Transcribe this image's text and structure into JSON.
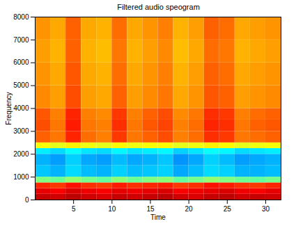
{
  "chart_data": {
    "type": "heatmap",
    "title": "Filtered audio speogram",
    "x_label": "Time",
    "y_label": "Frequency",
    "xlim": [
      0,
      32
    ],
    "ylim": [
      0,
      8000
    ],
    "xticks": [
      5,
      10,
      15,
      20,
      25,
      30
    ],
    "yticks": [
      0,
      1000,
      2000,
      3000,
      4000,
      5000,
      6000,
      7000,
      8000
    ],
    "x_edges": [
      0,
      2,
      4,
      6,
      8,
      10,
      12,
      14,
      16,
      18,
      20,
      22,
      24,
      26,
      28,
      30,
      32
    ],
    "y_edges": [
      0,
      250,
      500,
      750,
      1000,
      1500,
      2000,
      2250,
      2500,
      3000,
      3500,
      4000,
      5000,
      6000,
      7000,
      8000
    ],
    "zlim": [
      0,
      1
    ],
    "cells": [
      [
        0.93,
        0.92,
        0.94,
        0.92,
        0.91,
        0.93,
        0.92,
        0.93,
        0.94,
        0.92,
        0.91,
        0.93,
        0.94,
        0.92,
        0.93,
        0.92
      ],
      [
        0.9,
        0.88,
        0.91,
        0.89,
        0.88,
        0.9,
        0.89,
        0.9,
        0.91,
        0.88,
        0.89,
        0.9,
        0.91,
        0.89,
        0.88,
        0.9
      ],
      [
        0.84,
        0.82,
        0.86,
        0.83,
        0.82,
        0.85,
        0.83,
        0.84,
        0.85,
        0.82,
        0.83,
        0.86,
        0.85,
        0.83,
        0.82,
        0.84
      ],
      [
        0.5,
        0.48,
        0.52,
        0.49,
        0.47,
        0.51,
        0.48,
        0.5,
        0.51,
        0.47,
        0.49,
        0.52,
        0.5,
        0.48,
        0.47,
        0.49
      ],
      [
        0.32,
        0.3,
        0.34,
        0.31,
        0.3,
        0.33,
        0.31,
        0.32,
        0.33,
        0.29,
        0.31,
        0.34,
        0.33,
        0.3,
        0.3,
        0.31
      ],
      [
        0.3,
        0.28,
        0.33,
        0.29,
        0.28,
        0.31,
        0.29,
        0.3,
        0.32,
        0.27,
        0.29,
        0.33,
        0.31,
        0.28,
        0.29,
        0.3
      ],
      [
        0.36,
        0.34,
        0.38,
        0.35,
        0.34,
        0.37,
        0.35,
        0.36,
        0.37,
        0.33,
        0.35,
        0.38,
        0.37,
        0.34,
        0.35,
        0.36
      ],
      [
        0.62,
        0.6,
        0.64,
        0.61,
        0.6,
        0.63,
        0.61,
        0.62,
        0.63,
        0.6,
        0.61,
        0.64,
        0.63,
        0.6,
        0.61,
        0.62
      ],
      [
        0.78,
        0.76,
        0.84,
        0.77,
        0.75,
        0.82,
        0.76,
        0.78,
        0.8,
        0.75,
        0.77,
        0.83,
        0.82,
        0.76,
        0.77,
        0.78
      ],
      [
        0.8,
        0.76,
        0.85,
        0.76,
        0.75,
        0.83,
        0.76,
        0.79,
        0.81,
        0.75,
        0.77,
        0.84,
        0.83,
        0.76,
        0.78,
        0.79
      ],
      [
        0.79,
        0.75,
        0.84,
        0.75,
        0.74,
        0.82,
        0.75,
        0.78,
        0.8,
        0.74,
        0.76,
        0.83,
        0.82,
        0.75,
        0.77,
        0.78
      ],
      [
        0.74,
        0.72,
        0.8,
        0.72,
        0.71,
        0.78,
        0.72,
        0.74,
        0.76,
        0.71,
        0.73,
        0.79,
        0.78,
        0.72,
        0.73,
        0.74
      ],
      [
        0.73,
        0.71,
        0.79,
        0.71,
        0.7,
        0.77,
        0.71,
        0.73,
        0.75,
        0.7,
        0.72,
        0.78,
        0.77,
        0.71,
        0.72,
        0.73
      ],
      [
        0.72,
        0.7,
        0.78,
        0.7,
        0.69,
        0.76,
        0.7,
        0.72,
        0.74,
        0.69,
        0.71,
        0.77,
        0.76,
        0.7,
        0.71,
        0.72
      ],
      [
        0.73,
        0.71,
        0.78,
        0.71,
        0.7,
        0.77,
        0.71,
        0.73,
        0.75,
        0.7,
        0.72,
        0.78,
        0.77,
        0.71,
        0.72,
        0.73
      ]
    ]
  }
}
